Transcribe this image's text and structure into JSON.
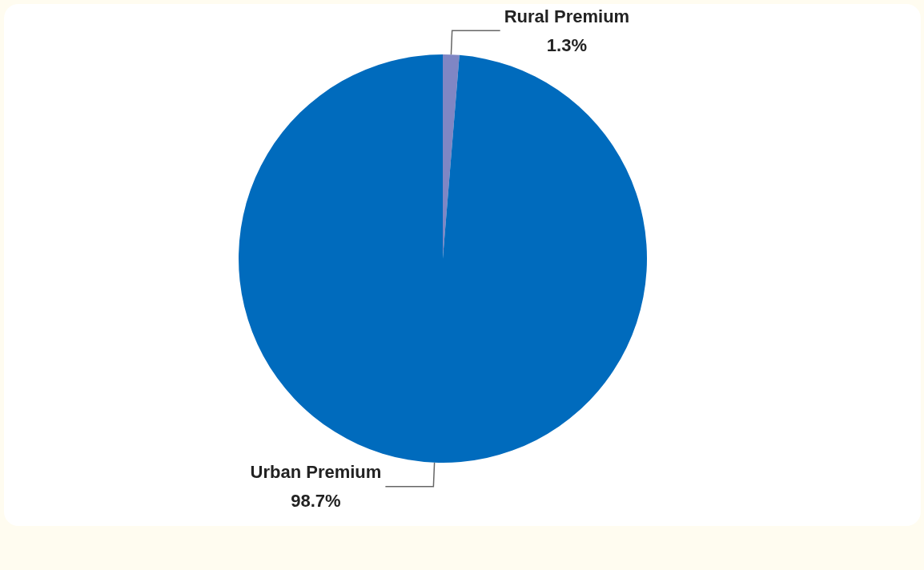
{
  "chart_data": {
    "type": "pie",
    "categories": [
      "Rural Premium",
      "Urban Premium"
    ],
    "values": [
      1.3,
      98.7
    ],
    "value_labels": [
      "1.3%",
      "98.7%"
    ],
    "colors": [
      "#7f86c4",
      "#006bbd"
    ],
    "legend": false
  }
}
